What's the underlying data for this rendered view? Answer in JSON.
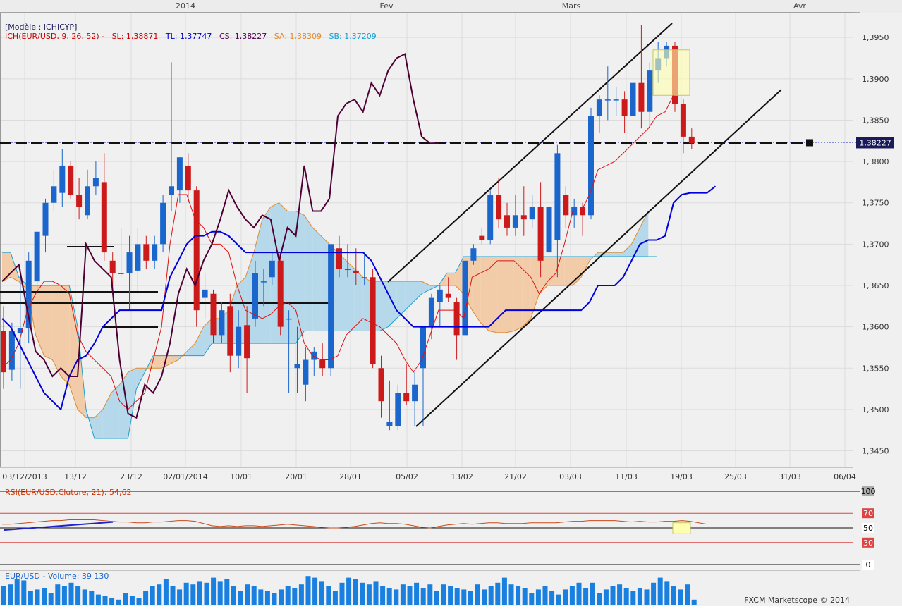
{
  "chart_data": [
    {
      "type": "candlestick",
      "title": "ICH(EUR/USD, 9, 26, 52)",
      "model": "[Modèle : ICHICYP]",
      "indicators": [
        {
          "label": "ICH(EUR/USD, 9, 26, 52) -",
          "color": "#cc0000"
        },
        {
          "label": "SL: 1,38871",
          "color": "#cc0000"
        },
        {
          "label": "TL: 1,37747",
          "color": "#0000cc"
        },
        {
          "label": "CS: 1,38227",
          "color": "#4d004d"
        },
        {
          "label": "SA: 1,38309",
          "color": "#e08a2c"
        },
        {
          "label": "SB: 1,37209",
          "color": "#1aa0d0"
        }
      ],
      "last_price_label": "1,38227",
      "last_price": 1.38227,
      "ylim": [
        1.343,
        1.398
      ],
      "yticks": [
        "1,3450",
        "1,3500",
        "1,3550",
        "1,3600",
        "1,3650",
        "1,3700",
        "1,3750",
        "1,3800",
        "1,3850",
        "1,3900",
        "1,3950"
      ],
      "xticks": [
        "03/12/2013",
        "13/12",
        "23/12",
        "02/01/2014",
        "10/01",
        "20/01",
        "28/01",
        "05/02",
        "13/02",
        "21/02",
        "03/03",
        "11/03",
        "19/03",
        "25/03",
        "31/03",
        "06/04"
      ],
      "month_markers": [
        "2014",
        "Fev",
        "Mars",
        "Avr"
      ],
      "grid": true,
      "candles": [
        {
          "o": 1.3595,
          "h": 1.3625,
          "l": 1.3525,
          "c": 1.3545
        },
        {
          "o": 1.3548,
          "h": 1.3605,
          "l": 1.3535,
          "c": 1.3595
        },
        {
          "o": 1.3592,
          "h": 1.367,
          "l": 1.3525,
          "c": 1.3598
        },
        {
          "o": 1.3598,
          "h": 1.369,
          "l": 1.358,
          "c": 1.368
        },
        {
          "o": 1.3655,
          "h": 1.3715,
          "l": 1.364,
          "c": 1.3715
        },
        {
          "o": 1.371,
          "h": 1.3755,
          "l": 1.369,
          "c": 1.375
        },
        {
          "o": 1.375,
          "h": 1.379,
          "l": 1.374,
          "c": 1.377
        },
        {
          "o": 1.3762,
          "h": 1.3815,
          "l": 1.3745,
          "c": 1.3795
        },
        {
          "o": 1.3795,
          "h": 1.38,
          "l": 1.3755,
          "c": 1.376
        },
        {
          "o": 1.376,
          "h": 1.378,
          "l": 1.373,
          "c": 1.3745
        },
        {
          "o": 1.3735,
          "h": 1.379,
          "l": 1.373,
          "c": 1.377
        },
        {
          "o": 1.377,
          "h": 1.38,
          "l": 1.376,
          "c": 1.378
        },
        {
          "o": 1.3775,
          "h": 1.381,
          "l": 1.368,
          "c": 1.369
        },
        {
          "o": 1.368,
          "h": 1.369,
          "l": 1.364,
          "c": 1.3665
        },
        {
          "o": 1.3665,
          "h": 1.372,
          "l": 1.366,
          "c": 1.3665
        },
        {
          "o": 1.3665,
          "h": 1.371,
          "l": 1.362,
          "c": 1.369
        },
        {
          "o": 1.3668,
          "h": 1.372,
          "l": 1.364,
          "c": 1.37
        },
        {
          "o": 1.37,
          "h": 1.371,
          "l": 1.367,
          "c": 1.368
        },
        {
          "o": 1.368,
          "h": 1.371,
          "l": 1.367,
          "c": 1.37
        },
        {
          "o": 1.37,
          "h": 1.376,
          "l": 1.369,
          "c": 1.375
        },
        {
          "o": 1.376,
          "h": 1.392,
          "l": 1.374,
          "c": 1.377
        },
        {
          "o": 1.3765,
          "h": 1.3805,
          "l": 1.375,
          "c": 1.3805
        },
        {
          "o": 1.3795,
          "h": 1.381,
          "l": 1.375,
          "c": 1.3765
        },
        {
          "o": 1.3765,
          "h": 1.377,
          "l": 1.36,
          "c": 1.362
        },
        {
          "o": 1.3635,
          "h": 1.3665,
          "l": 1.361,
          "c": 1.3645
        },
        {
          "o": 1.364,
          "h": 1.3645,
          "l": 1.358,
          "c": 1.359
        },
        {
          "o": 1.359,
          "h": 1.363,
          "l": 1.358,
          "c": 1.362
        },
        {
          "o": 1.3625,
          "h": 1.364,
          "l": 1.3545,
          "c": 1.3565
        },
        {
          "o": 1.3565,
          "h": 1.362,
          "l": 1.355,
          "c": 1.36
        },
        {
          "o": 1.3602,
          "h": 1.3625,
          "l": 1.352,
          "c": 1.3562
        },
        {
          "o": 1.361,
          "h": 1.368,
          "l": 1.36,
          "c": 1.3665
        },
        {
          "o": 1.3655,
          "h": 1.367,
          "l": 1.3625,
          "c": 1.3655
        },
        {
          "o": 1.366,
          "h": 1.369,
          "l": 1.365,
          "c": 1.368
        },
        {
          "o": 1.368,
          "h": 1.369,
          "l": 1.359,
          "c": 1.36
        },
        {
          "o": 1.361,
          "h": 1.362,
          "l": 1.352,
          "c": 1.361
        },
        {
          "o": 1.355,
          "h": 1.36,
          "l": 1.352,
          "c": 1.3555
        },
        {
          "o": 1.353,
          "h": 1.3575,
          "l": 1.351,
          "c": 1.356
        },
        {
          "o": 1.356,
          "h": 1.3575,
          "l": 1.354,
          "c": 1.357
        },
        {
          "o": 1.356,
          "h": 1.358,
          "l": 1.354,
          "c": 1.355
        },
        {
          "o": 1.355,
          "h": 1.37,
          "l": 1.354,
          "c": 1.37
        },
        {
          "o": 1.3695,
          "h": 1.371,
          "l": 1.366,
          "c": 1.367
        },
        {
          "o": 1.367,
          "h": 1.37,
          "l": 1.366,
          "c": 1.367
        },
        {
          "o": 1.3668,
          "h": 1.3695,
          "l": 1.365,
          "c": 1.3665
        },
        {
          "o": 1.366,
          "h": 1.369,
          "l": 1.365,
          "c": 1.366
        },
        {
          "o": 1.366,
          "h": 1.367,
          "l": 1.355,
          "c": 1.3555
        },
        {
          "o": 1.355,
          "h": 1.3565,
          "l": 1.349,
          "c": 1.351
        },
        {
          "o": 1.348,
          "h": 1.3535,
          "l": 1.3475,
          "c": 1.3485
        },
        {
          "o": 1.348,
          "h": 1.353,
          "l": 1.3475,
          "c": 1.352
        },
        {
          "o": 1.352,
          "h": 1.3555,
          "l": 1.3505,
          "c": 1.351
        },
        {
          "o": 1.351,
          "h": 1.3545,
          "l": 1.348,
          "c": 1.353
        },
        {
          "o": 1.355,
          "h": 1.36,
          "l": 1.348,
          "c": 1.36
        },
        {
          "o": 1.36,
          "h": 1.364,
          "l": 1.3585,
          "c": 1.3635
        },
        {
          "o": 1.363,
          "h": 1.365,
          "l": 1.36,
          "c": 1.3645
        },
        {
          "o": 1.364,
          "h": 1.366,
          "l": 1.363,
          "c": 1.3635
        },
        {
          "o": 1.363,
          "h": 1.3635,
          "l": 1.356,
          "c": 1.359
        },
        {
          "o": 1.359,
          "h": 1.369,
          "l": 1.3585,
          "c": 1.368
        },
        {
          "o": 1.368,
          "h": 1.37,
          "l": 1.3675,
          "c": 1.3695
        },
        {
          "o": 1.371,
          "h": 1.372,
          "l": 1.37,
          "c": 1.3705
        },
        {
          "o": 1.3705,
          "h": 1.3765,
          "l": 1.37,
          "c": 1.376
        },
        {
          "o": 1.376,
          "h": 1.378,
          "l": 1.372,
          "c": 1.373
        },
        {
          "o": 1.3735,
          "h": 1.375,
          "l": 1.371,
          "c": 1.372
        },
        {
          "o": 1.372,
          "h": 1.376,
          "l": 1.371,
          "c": 1.3735
        },
        {
          "o": 1.3735,
          "h": 1.377,
          "l": 1.371,
          "c": 1.373
        },
        {
          "o": 1.373,
          "h": 1.376,
          "l": 1.372,
          "c": 1.3745
        },
        {
          "o": 1.3745,
          "h": 1.3775,
          "l": 1.366,
          "c": 1.368
        },
        {
          "o": 1.369,
          "h": 1.375,
          "l": 1.367,
          "c": 1.3745
        },
        {
          "o": 1.3705,
          "h": 1.382,
          "l": 1.366,
          "c": 1.381
        },
        {
          "o": 1.376,
          "h": 1.377,
          "l": 1.372,
          "c": 1.3735
        },
        {
          "o": 1.3735,
          "h": 1.3755,
          "l": 1.372,
          "c": 1.3745
        },
        {
          "o": 1.3745,
          "h": 1.375,
          "l": 1.371,
          "c": 1.3735
        },
        {
          "o": 1.3735,
          "h": 1.3865,
          "l": 1.373,
          "c": 1.3855
        },
        {
          "o": 1.3855,
          "h": 1.388,
          "l": 1.3835,
          "c": 1.3875
        },
        {
          "o": 1.3875,
          "h": 1.3915,
          "l": 1.385,
          "c": 1.3875
        },
        {
          "o": 1.3875,
          "h": 1.389,
          "l": 1.3855,
          "c": 1.3875
        },
        {
          "o": 1.3875,
          "h": 1.3885,
          "l": 1.3835,
          "c": 1.3855
        },
        {
          "o": 1.3855,
          "h": 1.3905,
          "l": 1.384,
          "c": 1.3895
        },
        {
          "o": 1.3895,
          "h": 1.3965,
          "l": 1.384,
          "c": 1.386
        },
        {
          "o": 1.386,
          "h": 1.392,
          "l": 1.384,
          "c": 1.391
        },
        {
          "o": 1.391,
          "h": 1.3945,
          "l": 1.3895,
          "c": 1.3925
        },
        {
          "o": 1.3925,
          "h": 1.3945,
          "l": 1.3915,
          "c": 1.394
        },
        {
          "o": 1.394,
          "h": 1.3945,
          "l": 1.386,
          "c": 1.387
        },
        {
          "o": 1.387,
          "h": 1.3875,
          "l": 1.381,
          "c": 1.383
        },
        {
          "o": 1.383,
          "h": 1.384,
          "l": 1.3815,
          "c": 1.3822
        }
      ],
      "tenkan_sen": [
        1.355,
        1.356,
        1.358,
        1.362,
        1.364,
        1.3655,
        1.3655,
        1.365,
        1.364,
        1.359,
        1.357,
        1.356,
        1.355,
        1.354,
        1.351,
        1.35,
        1.351,
        1.352,
        1.356,
        1.36,
        1.37,
        1.376,
        1.376,
        1.373,
        1.372,
        1.37,
        1.37,
        1.369,
        1.365,
        1.362,
        1.3615,
        1.361,
        1.3615,
        1.3625,
        1.363,
        1.362,
        1.358,
        1.3565,
        1.356,
        1.356,
        1.3565,
        1.359,
        1.36,
        1.361,
        1.3605,
        1.36,
        1.359,
        1.358,
        1.356,
        1.3545,
        1.356,
        1.359,
        1.362,
        1.362,
        1.362,
        1.361,
        1.366,
        1.3665,
        1.367,
        1.368,
        1.368,
        1.368,
        1.367,
        1.366,
        1.364,
        1.3655,
        1.3665,
        1.37,
        1.374,
        1.374,
        1.376,
        1.379,
        1.3795,
        1.38,
        1.381,
        1.382,
        1.383,
        1.384,
        1.3855,
        1.386,
        1.388
      ],
      "kijun_sen": [
        1.361,
        1.36,
        1.358,
        1.356,
        1.354,
        1.352,
        1.351,
        1.35,
        1.354,
        1.356,
        1.3565,
        1.358,
        1.36,
        1.361,
        1.362,
        1.362,
        1.362,
        1.362,
        1.362,
        1.362,
        1.366,
        1.368,
        1.37,
        1.371,
        1.371,
        1.3715,
        1.3715,
        1.371,
        1.37,
        1.369,
        1.369,
        1.369,
        1.369,
        1.369,
        1.369,
        1.369,
        1.369,
        1.369,
        1.369,
        1.369,
        1.369,
        1.369,
        1.369,
        1.369,
        1.368,
        1.366,
        1.364,
        1.362,
        1.361,
        1.36,
        1.36,
        1.36,
        1.36,
        1.36,
        1.36,
        1.36,
        1.36,
        1.36,
        1.36,
        1.361,
        1.362,
        1.362,
        1.362,
        1.362,
        1.362,
        1.362,
        1.362,
        1.362,
        1.362,
        1.362,
        1.363,
        1.365,
        1.365,
        1.365,
        1.366,
        1.368,
        1.37,
        1.3705,
        1.3705,
        1.371,
        1.375,
        1.376,
        1.3762,
        1.3762,
        1.3762,
        1.377
      ],
      "chikou_span": [
        1.3655,
        1.3665,
        1.3675,
        1.362,
        1.357,
        1.356,
        1.354,
        1.355,
        1.354,
        1.354,
        1.37,
        1.368,
        1.367,
        1.366,
        1.356,
        1.3495,
        1.349,
        1.353,
        1.352,
        1.354,
        1.358,
        1.364,
        1.367,
        1.365,
        1.368,
        1.37,
        1.373,
        1.3765,
        1.3745,
        1.373,
        1.372,
        1.3735,
        1.373,
        1.368,
        1.372,
        1.371,
        1.3795,
        1.374,
        1.374,
        1.3755,
        1.3855,
        1.387,
        1.3875,
        1.386,
        1.3895,
        1.388,
        1.391,
        1.3925,
        1.393,
        1.3875,
        1.383,
        1.3822,
        1.3822
      ],
      "senkou_a": [
        1.3655,
        1.366,
        1.3655,
        1.3645,
        1.359,
        1.3565,
        1.356,
        1.354,
        1.353,
        1.35,
        1.349,
        1.349,
        1.35,
        1.352,
        1.353,
        1.3545,
        1.355,
        1.355,
        1.355,
        1.355,
        1.3555,
        1.356,
        1.357,
        1.358,
        1.36,
        1.361,
        1.361,
        1.362,
        1.365,
        1.366,
        1.369,
        1.373,
        1.3745,
        1.375,
        1.374,
        1.374,
        1.3735,
        1.372,
        1.371,
        1.37,
        1.369,
        1.368,
        1.367,
        1.366,
        1.3655,
        1.3655,
        1.3655,
        1.3655,
        1.3655,
        1.3655,
        1.3655,
        1.365,
        1.365,
        1.365,
        1.365,
        1.364,
        1.362,
        1.3605,
        1.3595,
        1.3593,
        1.3593,
        1.3595,
        1.36,
        1.361,
        1.364,
        1.365,
        1.365,
        1.365,
        1.365,
        1.366,
        1.368,
        1.369,
        1.369,
        1.369,
        1.369,
        1.37,
        1.372,
        1.374
      ],
      "senkou_b": [
        1.369,
        1.369,
        1.366,
        1.365,
        1.365,
        1.365,
        1.365,
        1.365,
        1.365,
        1.36,
        1.35,
        1.3465,
        1.3465,
        1.3465,
        1.3465,
        1.3465,
        1.3525,
        1.3545,
        1.3565,
        1.3565,
        1.3565,
        1.3565,
        1.3565,
        1.3565,
        1.3565,
        1.358,
        1.358,
        1.358,
        1.358,
        1.358,
        1.358,
        1.358,
        1.358,
        1.358,
        1.358,
        1.358,
        1.3595,
        1.3595,
        1.3595,
        1.3595,
        1.3595,
        1.3595,
        1.3595,
        1.3595,
        1.3595,
        1.3595,
        1.36,
        1.361,
        1.362,
        1.363,
        1.364,
        1.3645,
        1.365,
        1.3665,
        1.3665,
        1.3685,
        1.3685,
        1.3685,
        1.3685,
        1.3685,
        1.3685,
        1.3685,
        1.3685,
        1.3685,
        1.3685,
        1.3685,
        1.3685,
        1.3685,
        1.3685,
        1.3685,
        1.3685,
        1.3685,
        1.3685,
        1.3685,
        1.3685,
        1.3685,
        1.3685,
        1.3685,
        1.3685
      ]
    },
    {
      "type": "line",
      "title": "RSI(EUR/USD.Cluture, 21): 54,62",
      "ylim": [
        0,
        100
      ],
      "levels": [
        100,
        70,
        50,
        30,
        0
      ],
      "values": [
        55,
        55,
        56,
        57,
        58,
        59,
        60,
        60,
        61,
        61,
        61,
        61,
        60,
        59,
        58,
        58,
        57,
        57,
        58,
        58,
        59,
        60,
        60,
        59,
        56,
        53,
        52,
        53,
        52,
        53,
        53,
        52,
        53,
        54,
        55,
        54,
        53,
        52,
        51,
        50,
        50,
        51,
        52,
        54,
        56,
        57,
        56,
        56,
        55,
        53,
        51,
        50,
        52,
        54,
        55,
        56,
        55,
        56,
        57,
        57,
        56,
        56,
        56,
        57,
        57,
        57,
        57,
        58,
        59,
        59,
        60,
        60,
        60,
        60,
        59,
        58,
        59,
        58,
        58,
        59,
        59,
        60,
        59,
        57,
        55
      ]
    },
    {
      "type": "bar",
      "title": "EUR/USD - Volume: 39 130",
      "values": [
        55,
        60,
        75,
        72,
        40,
        45,
        50,
        35,
        60,
        55,
        65,
        55,
        45,
        40,
        30,
        25,
        20,
        15,
        35,
        25,
        20,
        40,
        55,
        60,
        75,
        55,
        45,
        65,
        60,
        70,
        65,
        80,
        70,
        75,
        55,
        40,
        60,
        55,
        45,
        40,
        35,
        45,
        55,
        50,
        60,
        85,
        80,
        70,
        55,
        40,
        65,
        80,
        75,
        65,
        60,
        70,
        55,
        50,
        45,
        60,
        55,
        65,
        50,
        60,
        40,
        60,
        55,
        50,
        45,
        40,
        60,
        45,
        55,
        65,
        80,
        60,
        55,
        50,
        35,
        45,
        55,
        40,
        30,
        45,
        55,
        65,
        50,
        65,
        35,
        45,
        55,
        60,
        50,
        40,
        50,
        45,
        65,
        80,
        70,
        55,
        45,
        60,
        15
      ]
    }
  ],
  "footer": {
    "copyright": "FXCM Marketscope © 2014"
  },
  "rsi_axis_labels": [
    "100",
    "70",
    "50",
    "30",
    "0"
  ],
  "colors": {
    "background": "#f0f0f0",
    "bull": "#1a66cc",
    "bear": "#cc1a1a",
    "tenkan": "#dd1111",
    "kijun": "#0000dd",
    "chikou": "#4d0033",
    "cloud_bull": "#b5d8ea",
    "cloud_bear": "#f2cca8",
    "senkou_a": "#e08a2c",
    "senkou_b": "#1aa0d0",
    "volume": "#1a80e0"
  }
}
